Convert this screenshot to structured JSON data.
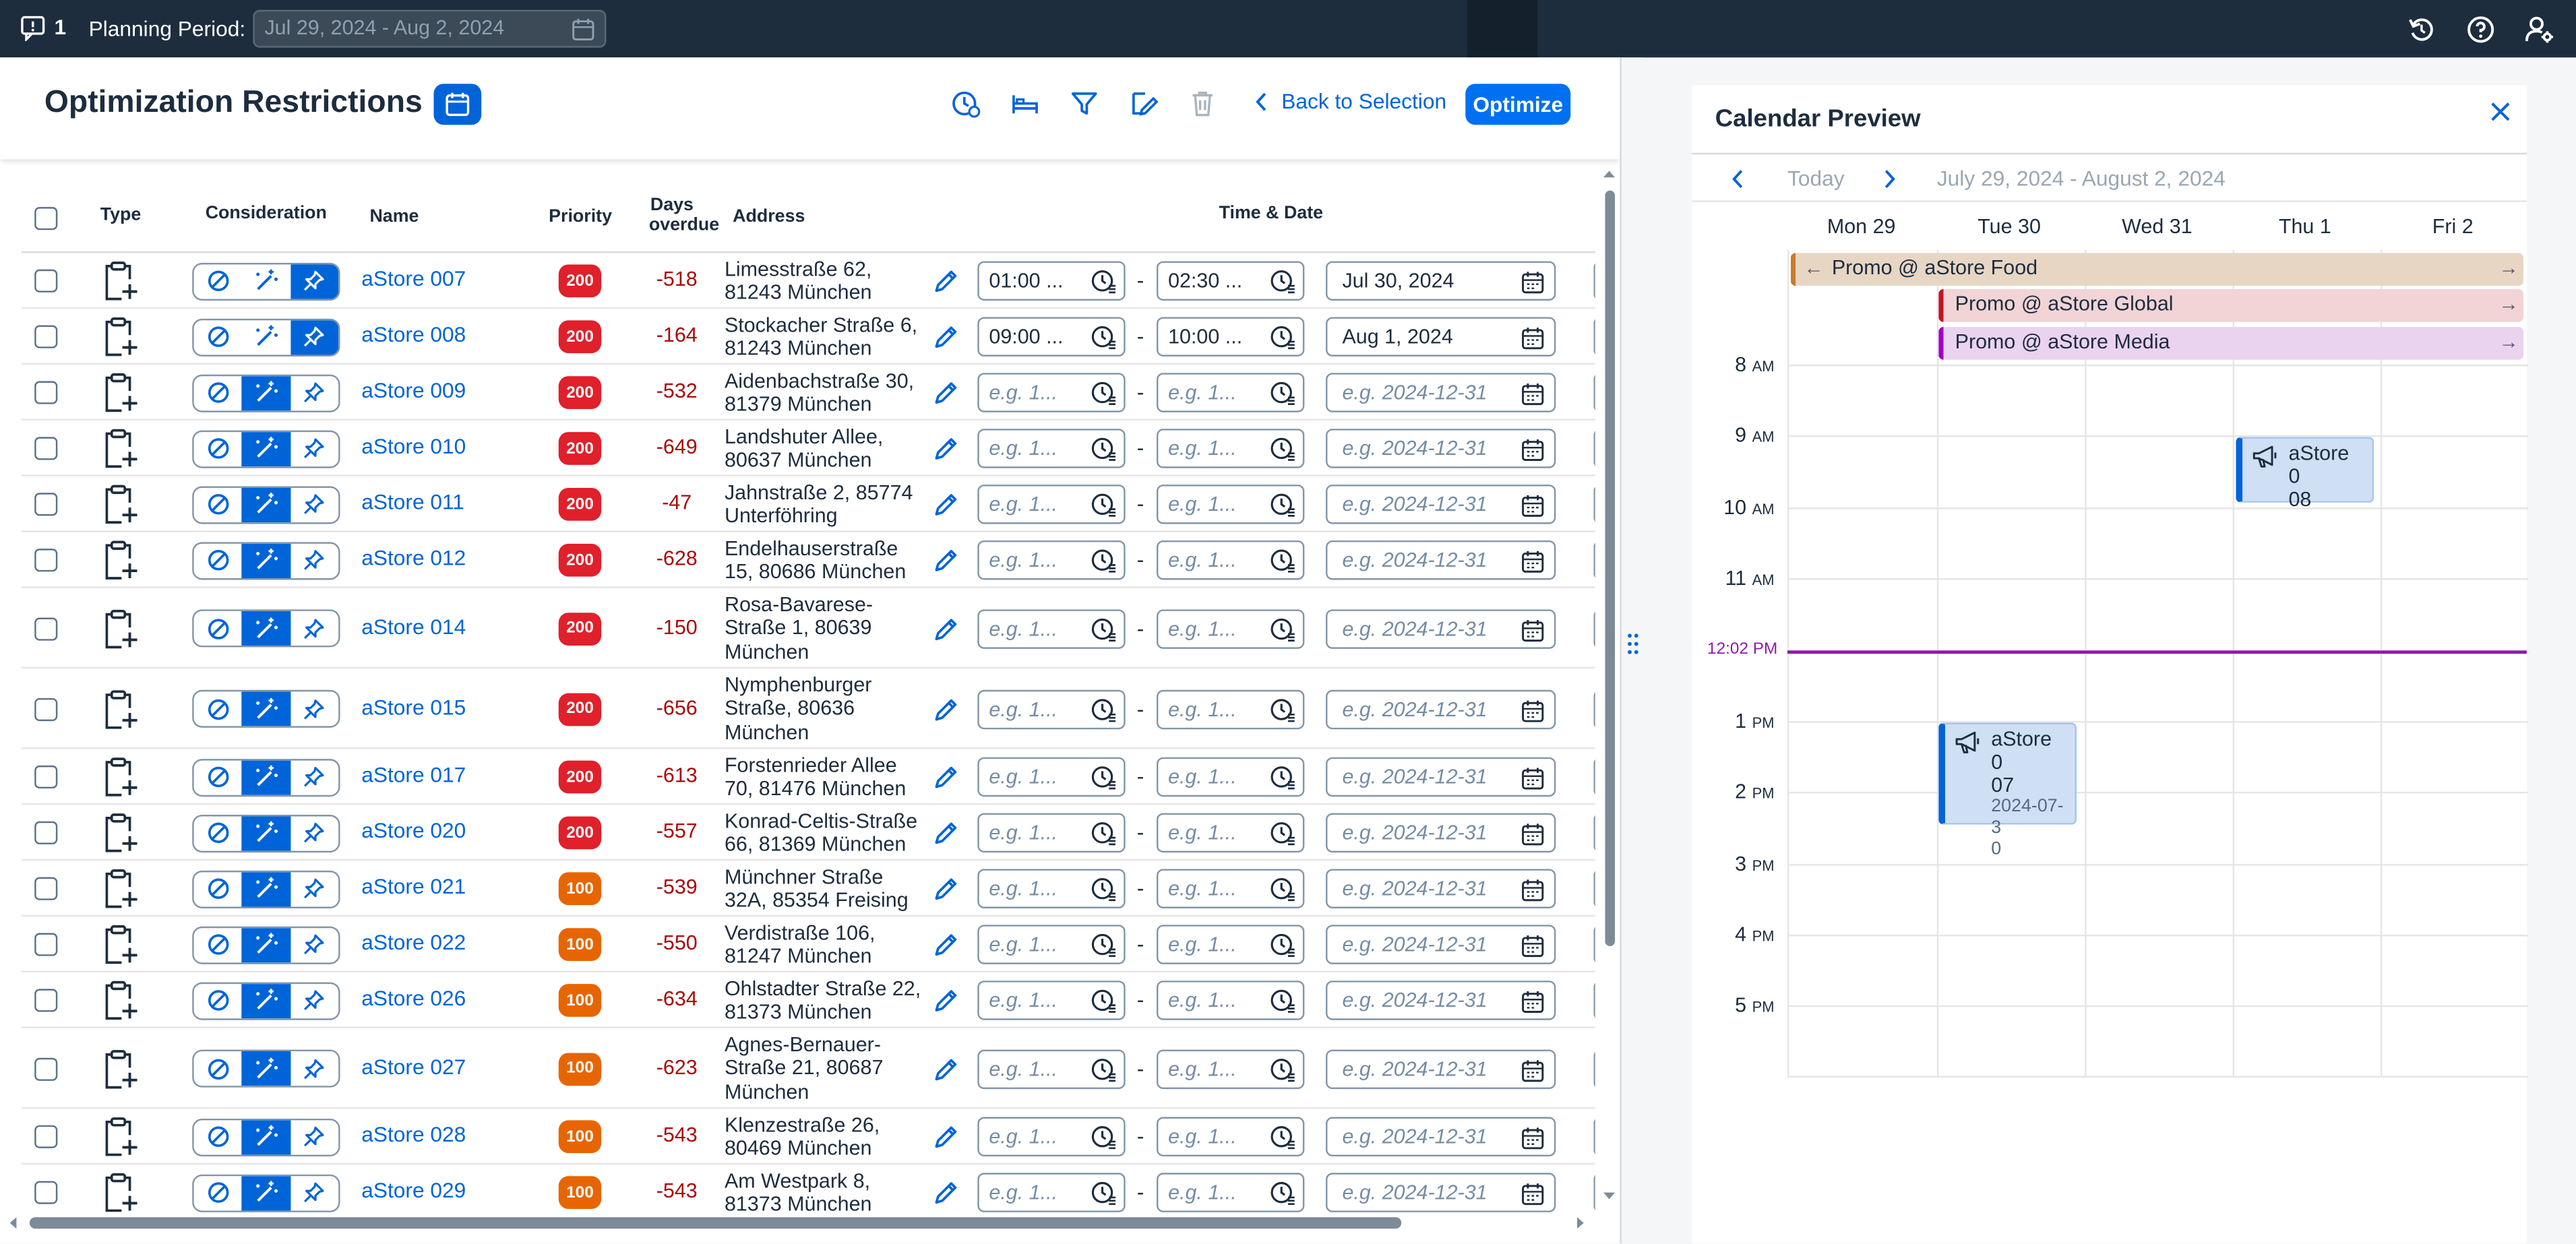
{
  "topbar": {
    "notification_count": "1",
    "planning_label": "Planning Period:",
    "planning_value": "Jul 29, 2024 - Aug 2, 2024"
  },
  "page": {
    "title": "Optimization Restrictions",
    "back_label": "Back to Selection",
    "optimize_label": "Optimize"
  },
  "table": {
    "headers": {
      "type": "Type",
      "consideration": "Consideration",
      "name": "Name",
      "priority": "Priority",
      "days_overdue_1": "Days",
      "days_overdue_2": "overdue",
      "address": "Address",
      "time_date": "Time & Date"
    },
    "time_placeholder": "e.g. 1...",
    "date_placeholder": "e.g. 2024-12-31",
    "rows": [
      {
        "name": "aStore 007",
        "priority": "200",
        "days": "-518",
        "addr": [
          "Limesstraße 62,",
          "81243 München"
        ],
        "consider": "pin",
        "t1": "01:00 ...",
        "t2": "02:30 ...",
        "date": "Jul 30, 2024"
      },
      {
        "name": "aStore 008",
        "priority": "200",
        "days": "-164",
        "addr": [
          "Stockacher Straße 6,",
          "81243 München"
        ],
        "consider": "pin",
        "t1": "09:00 ...",
        "t2": "10:00 ...",
        "date": "Aug 1, 2024"
      },
      {
        "name": "aStore 009",
        "priority": "200",
        "days": "-532",
        "addr": [
          "Aidenbachstraße 30,",
          "81379 München"
        ],
        "consider": "auto"
      },
      {
        "name": "aStore 010",
        "priority": "200",
        "days": "-649",
        "addr": [
          "Landshuter Allee,",
          "80637 München"
        ],
        "consider": "auto"
      },
      {
        "name": "aStore 011",
        "priority": "200",
        "days": "-47",
        "addr": [
          "Jahnstraße 2, 85774",
          "Unterföhring"
        ],
        "consider": "auto"
      },
      {
        "name": "aStore 012",
        "priority": "200",
        "days": "-628",
        "addr": [
          "Endelhauserstraße",
          "15, 80686 München"
        ],
        "consider": "auto"
      },
      {
        "name": "aStore 014",
        "priority": "200",
        "days": "-150",
        "addr": [
          "Rosa-Bavarese-",
          "Straße 1, 80639",
          "München"
        ],
        "consider": "auto"
      },
      {
        "name": "aStore 015",
        "priority": "200",
        "days": "-656",
        "addr": [
          "Nymphenburger",
          "Straße, 80636",
          "München"
        ],
        "consider": "auto"
      },
      {
        "name": "aStore 017",
        "priority": "200",
        "days": "-613",
        "addr": [
          "Forstenrieder Allee",
          "70, 81476 München"
        ],
        "consider": "auto"
      },
      {
        "name": "aStore 020",
        "priority": "200",
        "days": "-557",
        "addr": [
          "Konrad-Celtis-Straße",
          "66, 81369 München"
        ],
        "consider": "auto"
      },
      {
        "name": "aStore 021",
        "priority": "100",
        "days": "-539",
        "addr": [
          "Münchner Straße",
          "32A, 85354 Freising"
        ],
        "consider": "auto"
      },
      {
        "name": "aStore 022",
        "priority": "100",
        "days": "-550",
        "addr": [
          "Verdistraße 106,",
          "81247 München"
        ],
        "consider": "auto"
      },
      {
        "name": "aStore 026",
        "priority": "100",
        "days": "-634",
        "addr": [
          "Ohlstadter Straße 22,",
          "81373 München"
        ],
        "consider": "auto"
      },
      {
        "name": "aStore 027",
        "priority": "100",
        "days": "-623",
        "addr": [
          "Agnes-Bernauer-",
          "Straße 21, 80687",
          "München"
        ],
        "consider": "auto"
      },
      {
        "name": "aStore 028",
        "priority": "100",
        "days": "-543",
        "addr": [
          "Klenzestraße 26,",
          "80469 München"
        ],
        "consider": "auto"
      },
      {
        "name": "aStore 029",
        "priority": "100",
        "days": "-543",
        "addr": [
          "Am Westpark 8,",
          "81373 München"
        ],
        "consider": "auto"
      }
    ]
  },
  "calendar": {
    "title": "Calendar Preview",
    "today_label": "Today",
    "range": "July 29, 2024 - August 2, 2024",
    "days": [
      "Mon 29",
      "Tue 30",
      "Wed 31",
      "Thu 1",
      "Fri 2"
    ],
    "hours": [
      {
        "h": "8",
        "ap": "AM"
      },
      {
        "h": "9",
        "ap": "AM"
      },
      {
        "h": "10",
        "ap": "AM"
      },
      {
        "h": "11",
        "ap": "AM"
      },
      {
        "h": "1",
        "ap": "PM"
      },
      {
        "h": "2",
        "ap": "PM"
      },
      {
        "h": "3",
        "ap": "PM"
      },
      {
        "h": "4",
        "ap": "PM"
      },
      {
        "h": "5",
        "ap": "PM"
      }
    ],
    "now_label": "12:02 PM",
    "promos": [
      {
        "label": "Promo @ aStore Food",
        "color": "#e8d6c4",
        "bar": "#c87a2a"
      },
      {
        "label": "Promo @ aStore Global",
        "color": "#f2d4d6",
        "bar": "#c0141e"
      },
      {
        "label": "Promo @ aStore Media",
        "color": "#ead3ef",
        "bar": "#a100c2"
      }
    ],
    "appointments": [
      {
        "title": "aStore 0 08",
        "lines": [
          "aStore 0",
          "08"
        ]
      },
      {
        "title": "aStore 0 07",
        "lines": [
          "aStore 0",
          "07"
        ],
        "sub": [
          "2024-07-3",
          "0"
        ]
      }
    ]
  },
  "colors": {
    "accent": "#0064d9",
    "shell": "#1d2d3e",
    "prio200": "#e0202b",
    "prio100": "#e76500",
    "now": "#8e1ba6"
  }
}
